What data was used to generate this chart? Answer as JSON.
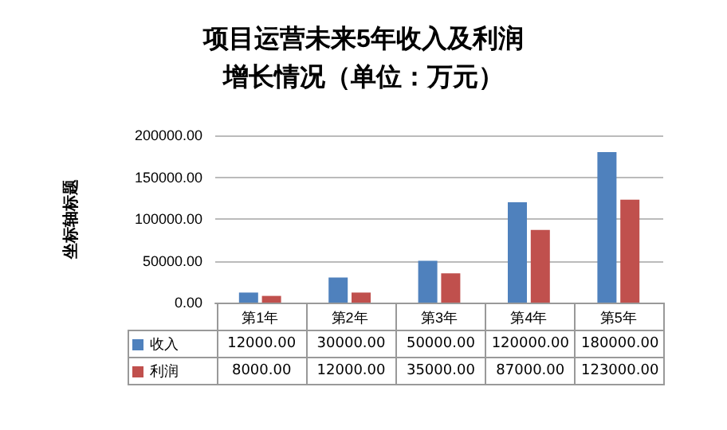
{
  "chart_data": {
    "type": "bar",
    "title": "项目运营未来5年收入及利润增长情况（单位：万元）",
    "ylabel": "坐标轴标题",
    "categories": [
      "第1年",
      "第2年",
      "第3年",
      "第4年",
      "第5年"
    ],
    "series": [
      {
        "name": "收入",
        "color": "#4f81bd",
        "values": [
          12000,
          30000,
          50000,
          120000,
          180000
        ],
        "value_labels": [
          "12000.00",
          "30000.00",
          "50000.00",
          "120000.00",
          "180000.00"
        ]
      },
      {
        "name": "利润",
        "color": "#c0504d",
        "values": [
          8000,
          12000,
          35000,
          87000,
          123000
        ],
        "value_labels": [
          "8000.00",
          "12000.00",
          "35000.00",
          "87000.00",
          "123000.00"
        ]
      }
    ],
    "ylim": [
      0,
      200000
    ],
    "yticks": [
      {
        "value": 0,
        "label": "0.00"
      },
      {
        "value": 50000,
        "label": "50000.00"
      },
      {
        "value": 100000,
        "label": "100000.00"
      },
      {
        "value": 150000,
        "label": "150000.00"
      },
      {
        "value": 200000,
        "label": "200000.00"
      }
    ],
    "grid": "y",
    "legend": "bottom"
  }
}
